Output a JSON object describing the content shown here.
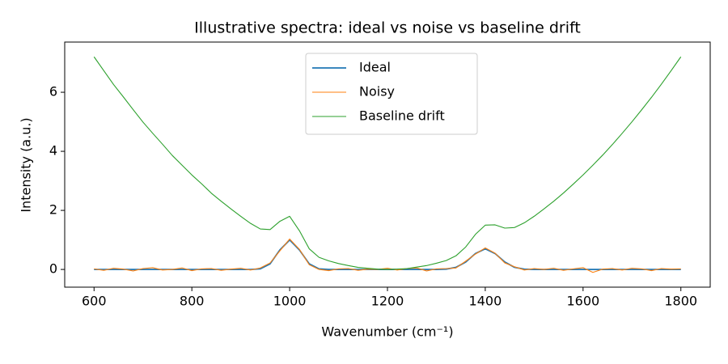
{
  "chart_data": {
    "type": "line",
    "title": "Illustrative spectra: ideal vs noise vs baseline drift",
    "xlabel": "Wavenumber (cm⁻¹)",
    "ylabel": "Intensity (a.u.)",
    "x": [
      600,
      620,
      640,
      660,
      680,
      700,
      720,
      740,
      760,
      780,
      800,
      820,
      840,
      860,
      880,
      900,
      920,
      940,
      960,
      980,
      1000,
      1020,
      1040,
      1060,
      1080,
      1100,
      1120,
      1140,
      1160,
      1180,
      1200,
      1220,
      1240,
      1260,
      1280,
      1300,
      1320,
      1340,
      1360,
      1380,
      1400,
      1420,
      1440,
      1460,
      1480,
      1500,
      1520,
      1540,
      1560,
      1580,
      1600,
      1620,
      1640,
      1660,
      1680,
      1700,
      1720,
      1740,
      1760,
      1780,
      1800
    ],
    "series": [
      {
        "name": "Ideal",
        "color": "#1f77b4",
        "width": 1.8,
        "values": [
          0,
          0,
          0,
          0,
          0,
          0,
          0,
          0,
          0,
          0,
          0,
          0,
          0,
          0,
          0,
          0,
          0,
          0.02,
          0.19,
          0.66,
          1.0,
          0.66,
          0.19,
          0.02,
          0,
          0,
          0,
          0,
          0,
          0,
          0,
          0,
          0,
          0,
          0,
          0,
          0.01,
          0.07,
          0.25,
          0.54,
          0.7,
          0.54,
          0.25,
          0.07,
          0.01,
          0,
          0,
          0,
          0,
          0,
          0,
          0,
          0,
          0,
          0,
          0,
          0,
          0,
          0,
          0,
          0
        ]
      },
      {
        "name": "Noisy",
        "color": "#ff7f0e",
        "width": 1.1,
        "values": [
          0.02,
          -0.03,
          0.04,
          0.01,
          -0.05,
          0.03,
          0.06,
          -0.02,
          0.0,
          0.05,
          -0.04,
          0.02,
          0.03,
          -0.03,
          0.01,
          0.04,
          -0.02,
          0.05,
          0.22,
          0.63,
          1.03,
          0.68,
          0.16,
          0.0,
          -0.04,
          0.02,
          0.03,
          -0.03,
          0.01,
          0.0,
          0.04,
          -0.02,
          0.03,
          0.05,
          -0.05,
          0.02,
          0.03,
          0.05,
          0.28,
          0.52,
          0.73,
          0.55,
          0.22,
          0.09,
          -0.02,
          0.03,
          0.0,
          0.04,
          -0.03,
          0.02,
          0.06,
          -0.1,
          0.01,
          0.03,
          -0.02,
          0.04,
          0.02,
          -0.04,
          0.03,
          0.01,
          0.02
        ]
      },
      {
        "name": "Baseline drift",
        "color": "#2ca02c",
        "width": 1.1,
        "values": [
          7.2,
          6.73,
          6.26,
          5.84,
          5.41,
          4.99,
          4.61,
          4.24,
          3.86,
          3.53,
          3.2,
          2.9,
          2.58,
          2.31,
          2.05,
          1.8,
          1.56,
          1.37,
          1.35,
          1.63,
          1.8,
          1.31,
          0.7,
          0.41,
          0.29,
          0.2,
          0.13,
          0.07,
          0.04,
          0.01,
          0.0,
          0.01,
          0.03,
          0.08,
          0.13,
          0.21,
          0.3,
          0.46,
          0.76,
          1.19,
          1.5,
          1.51,
          1.4,
          1.42,
          1.58,
          1.8,
          2.05,
          2.31,
          2.59,
          2.89,
          3.2,
          3.53,
          3.87,
          4.23,
          4.61,
          5.0,
          5.41,
          5.83,
          6.27,
          6.73,
          7.2
        ]
      }
    ],
    "xlim": [
      540,
      1860
    ],
    "ylim": [
      -0.6,
      7.7
    ],
    "xticks": [
      600,
      800,
      1000,
      1200,
      1400,
      1600,
      1800
    ],
    "yticks": [
      0,
      2,
      4,
      6
    ],
    "legend": "upper center"
  }
}
